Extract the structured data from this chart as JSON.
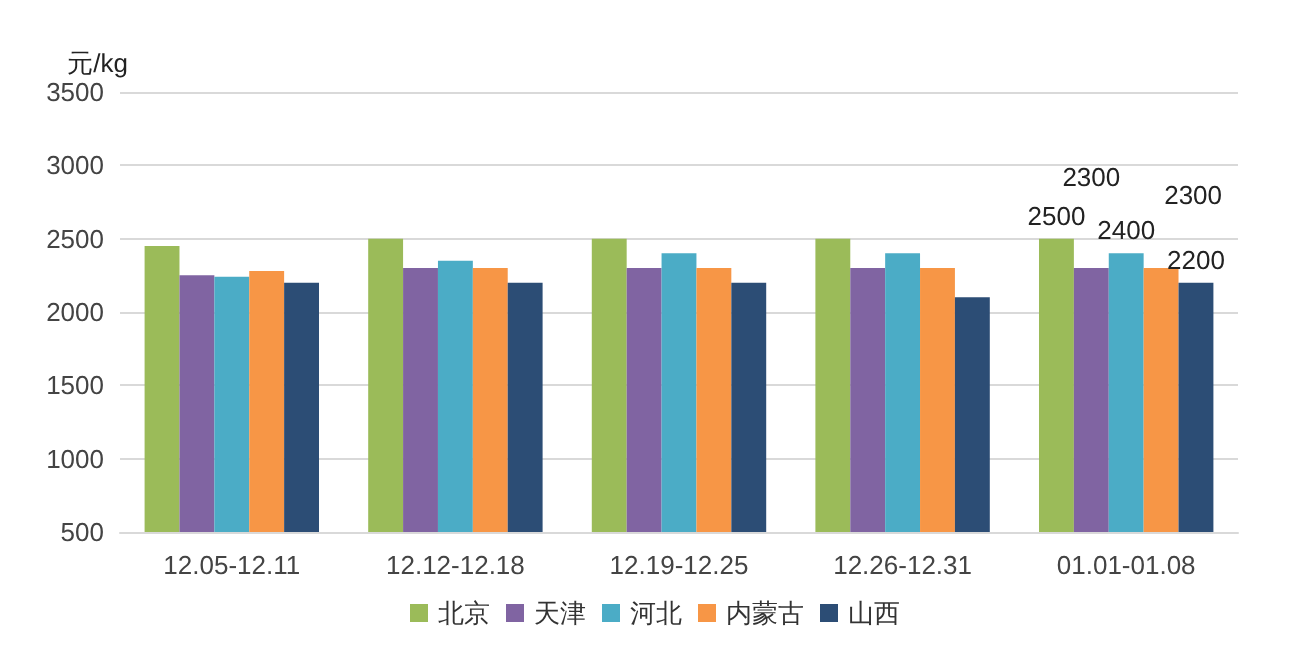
{
  "chart_data": {
    "type": "bar",
    "ylabel": "元/kg",
    "categories": [
      "12.05-12.11",
      "12.12-12.18",
      "12.19-12.25",
      "12.26-12.31",
      "01.01-01.08"
    ],
    "series": [
      {
        "name": "北京",
        "color": "#9bbb59",
        "values": [
          2450,
          2500,
          2500,
          2500,
          2500
        ],
        "value_labels": [
          null,
          null,
          null,
          null,
          "2500"
        ]
      },
      {
        "name": "天津",
        "color": "#8064a2",
        "values": [
          2250,
          2300,
          2300,
          2300,
          2300
        ],
        "value_labels": [
          null,
          null,
          null,
          null,
          "2300"
        ]
      },
      {
        "name": "河北",
        "color": "#4bacc6",
        "values": [
          2240,
          2350,
          2400,
          2400,
          2400
        ],
        "value_labels": [
          null,
          null,
          null,
          null,
          "2400"
        ]
      },
      {
        "name": "内蒙古",
        "color": "#f79646",
        "values": [
          2280,
          2300,
          2300,
          2300,
          2300
        ],
        "value_labels": [
          null,
          null,
          null,
          null,
          "2300"
        ]
      },
      {
        "name": "山西",
        "color": "#2c4d75",
        "values": [
          2200,
          2200,
          2200,
          2100,
          2200
        ],
        "value_labels": [
          null,
          null,
          null,
          null,
          "2200"
        ]
      }
    ],
    "ylim": [
      500,
      3500
    ],
    "yticks": [
      500,
      1000,
      1500,
      2000,
      2500,
      3000,
      3500
    ],
    "grid": "y",
    "legend": "bottom"
  }
}
